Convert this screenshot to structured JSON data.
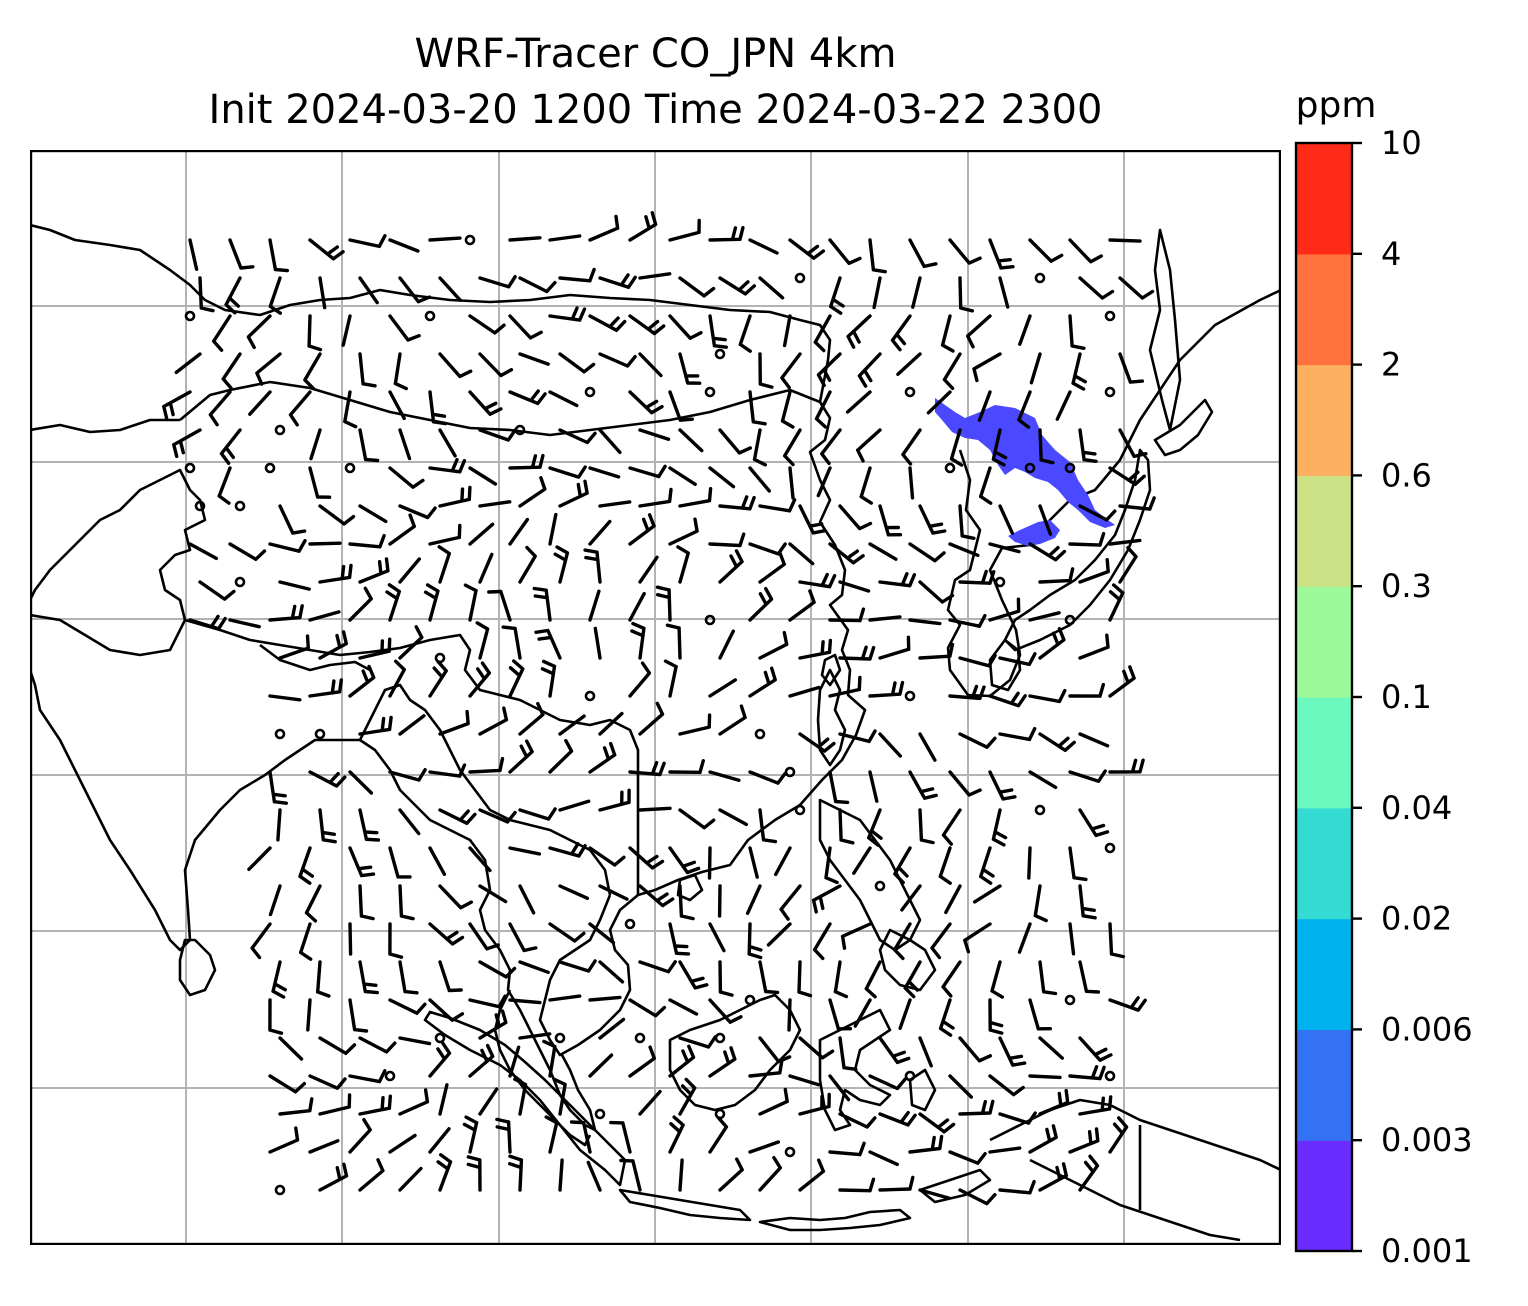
{
  "title": {
    "line1": "WRF-Tracer CO_JPN 4km",
    "line2": "Init 2024-03-20 1200 Time 2024-03-22 2300"
  },
  "colorbar": {
    "unit": "ppm",
    "levels": [
      "0.001",
      "0.003",
      "0.006",
      "0.02",
      "0.04",
      "0.1",
      "0.3",
      "0.6",
      "2",
      "4",
      "10"
    ],
    "colors": [
      "#6a2bff",
      "#3372f2",
      "#00b3ee",
      "#33dbd2",
      "#6bf9bf",
      "#9cfa9b",
      "#cde186",
      "#fdb060",
      "#ff713d",
      "#ff2a17"
    ]
  },
  "map": {
    "gridlines": true,
    "grid_color": "#b3b3b3",
    "coastline_color": "#000000",
    "tracer_color": "#4b49ff"
  }
}
